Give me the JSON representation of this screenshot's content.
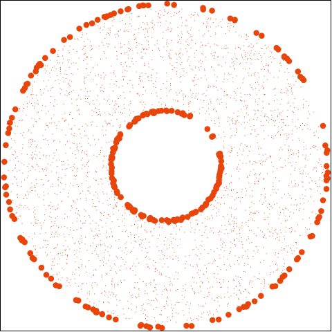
{
  "chart_data": {
    "type": "scatter",
    "title": "",
    "xlabel": "",
    "ylabel": "",
    "grid": false,
    "legend": "none",
    "xlim": [
      -1.01,
      1.01
    ],
    "ylim": [
      -1.01,
      1.01
    ],
    "color": "#e8450a",
    "center": [
      0,
      0
    ],
    "series": [
      {
        "role": "outer-ring",
        "marker": "large-dot",
        "radius": 0.983,
        "count": 140
      },
      {
        "role": "inner-ring",
        "marker": "large-dot",
        "radius": 0.335,
        "count": 130
      },
      {
        "role": "scattered-annulus",
        "marker": "tiny-dot",
        "r_range": [
          0.35,
          0.96
        ],
        "count": 3000
      }
    ]
  }
}
